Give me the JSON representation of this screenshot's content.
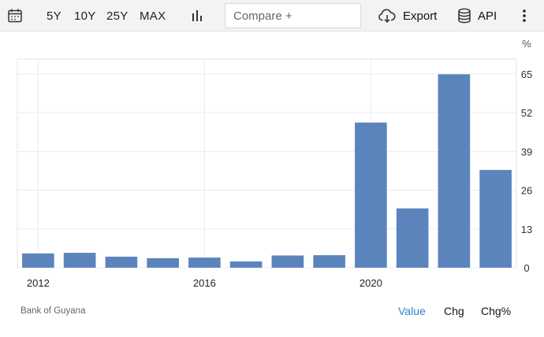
{
  "toolbar": {
    "ranges": [
      "5Y",
      "10Y",
      "25Y",
      "MAX"
    ],
    "compare_placeholder": "Compare +",
    "export_label": "Export",
    "api_label": "API"
  },
  "chart_data": {
    "type": "bar",
    "x": [
      "2012",
      "2013",
      "2014",
      "2015",
      "2016",
      "2017",
      "2018",
      "2019",
      "2020",
      "2021",
      "2022",
      "2023"
    ],
    "values": [
      4.8,
      5.0,
      3.7,
      3.2,
      3.4,
      2.1,
      4.1,
      4.2,
      48.7,
      19.9,
      64.9,
      32.8
    ],
    "xticks": [
      "2012",
      "2016",
      "2020"
    ],
    "yticks": [
      "0",
      "13",
      "26",
      "39",
      "52",
      "65"
    ],
    "yunit": "%",
    "ylim": [
      0,
      70
    ],
    "color": "#5b84bd",
    "grid": true,
    "y_axis_side": "right"
  },
  "footer": {
    "source": "Bank of Guyana",
    "modes": [
      "Value",
      "Chg",
      "Chg%"
    ],
    "active_mode": "Value"
  }
}
